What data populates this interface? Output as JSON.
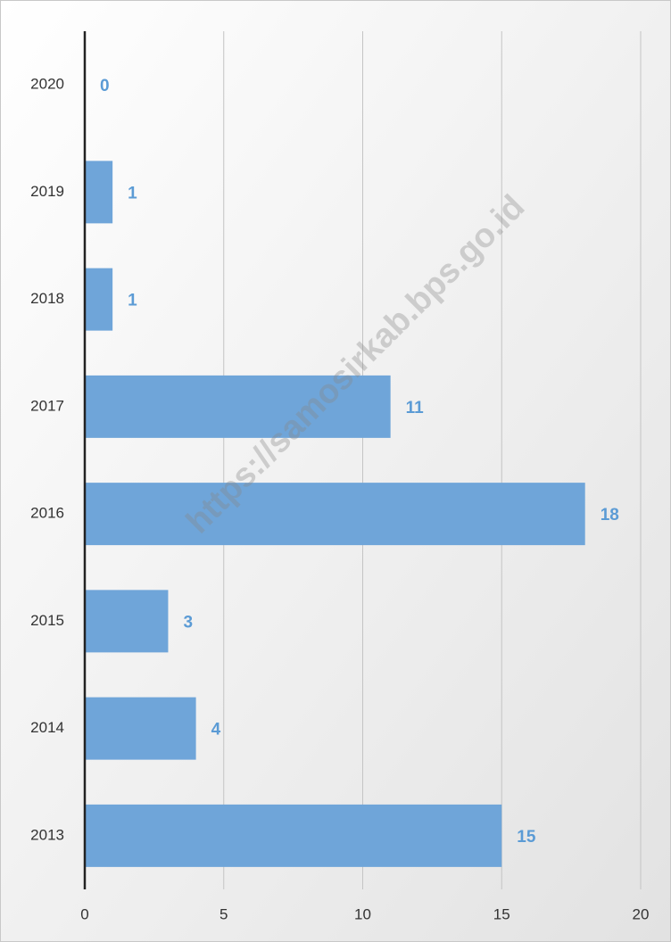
{
  "chart_data": {
    "type": "hbar",
    "categories": [
      "2020",
      "2019",
      "2018",
      "2017",
      "2016",
      "2015",
      "2014",
      "2013"
    ],
    "values": [
      0,
      1,
      1,
      11,
      18,
      3,
      4,
      15
    ],
    "color": "#6fa5d9",
    "label_color": "#5b9bd5",
    "xlim": [
      0,
      20
    ],
    "xticks": [
      0,
      5,
      10,
      15,
      20
    ],
    "grid": true,
    "watermark": "https://samosirkab.bps.go.id"
  }
}
